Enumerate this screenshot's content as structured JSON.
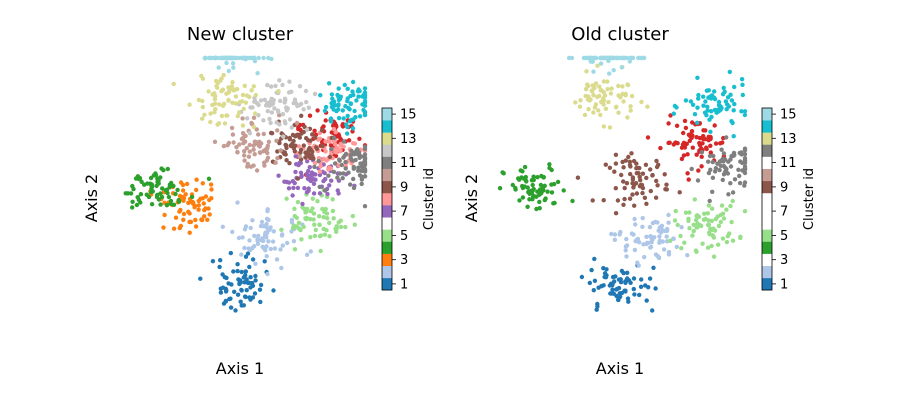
{
  "chart_data": [
    {
      "type": "scatter",
      "title": "New cluster",
      "xlabel": "Axis 1",
      "ylabel": "Axis 2",
      "colorbar": {
        "label": "Cluster id",
        "ticks": [
          1,
          3,
          5,
          7,
          9,
          11,
          13,
          15
        ],
        "range": [
          0.5,
          15.5
        ]
      },
      "cluster_centers": [
        {
          "id": 1,
          "x": 0.0,
          "y": -5.0
        },
        {
          "id": 2,
          "x": 1.3,
          "y": -2.3
        },
        {
          "id": 3,
          "x": -2.7,
          "y": -0.3
        },
        {
          "id": 4,
          "x": -4.2,
          "y": 0.6
        },
        {
          "id": 5,
          "x": 4.0,
          "y": -1.2
        },
        {
          "id": 6,
          "x": 4.5,
          "y": 3.8
        },
        {
          "id": 7,
          "x": 3.6,
          "y": 1.3
        },
        {
          "id": 8,
          "x": 4.6,
          "y": 2.8
        },
        {
          "id": 9,
          "x": 2.8,
          "y": 3.1
        },
        {
          "id": 10,
          "x": 0.6,
          "y": 3.1
        },
        {
          "id": 11,
          "x": 5.8,
          "y": 2.2
        },
        {
          "id": 12,
          "x": 2.0,
          "y": 5.6
        },
        {
          "id": 13,
          "x": -0.8,
          "y": 6.0
        },
        {
          "id": 14,
          "x": 5.5,
          "y": 5.5
        },
        {
          "id": 15,
          "x": -0.6,
          "y": 9.0
        }
      ]
    },
    {
      "type": "scatter",
      "title": "Old cluster",
      "xlabel": "Axis 1",
      "ylabel": "Axis 2",
      "colorbar": {
        "label": "Cluster id",
        "ticks": [
          1,
          3,
          5,
          7,
          9,
          11,
          13,
          15
        ],
        "range": [
          0.5,
          15.5
        ]
      },
      "cluster_centers": [
        {
          "id": 1,
          "x": 0.0,
          "y": -5.0
        },
        {
          "id": 2,
          "x": 1.3,
          "y": -2.3
        },
        {
          "id": 4,
          "x": -4.2,
          "y": 0.6
        },
        {
          "id": 5,
          "x": 4.3,
          "y": -1.5
        },
        {
          "id": 6,
          "x": 3.8,
          "y": 3.4
        },
        {
          "id": 9,
          "x": 0.9,
          "y": 1.2
        },
        {
          "id": 11,
          "x": 5.5,
          "y": 2.0
        },
        {
          "id": 13,
          "x": -0.8,
          "y": 6.0
        },
        {
          "id": 14,
          "x": 4.8,
          "y": 5.5
        },
        {
          "id": 15,
          "x": -0.6,
          "y": 9.0
        }
      ]
    }
  ],
  "palette": [
    "#1f77b4",
    "#aec7e8",
    "#ff7f0e",
    "#2ca02c",
    "#98df8a",
    "#d62728",
    "#9467bd",
    "#ff9896",
    "#8c564b",
    "#c49c94",
    "#7f7f7f",
    "#c7c7c7",
    "#dbdb8d",
    "#17becf",
    "#9edae5"
  ],
  "colorbar_swatches": [
    "#1f77b4",
    "#aec7e8",
    "#ff7f0e",
    "#2ca02c",
    "#98df8a",
    "#ffffff",
    "#9467bd",
    "#ff9896",
    "#8c564b",
    "#c49c94",
    "#7f7f7f",
    "#c7c7c7",
    "#dbdb8d",
    "#17becf",
    "#9edae5"
  ],
  "colorbar_swatches_old": [
    "#1f77b4",
    "#aec7e8",
    "#ffffff",
    "#2ca02c",
    "#98df8a",
    "#ffffff",
    "#ffffff",
    "#ffffff",
    "#8c564b",
    "#c49c94",
    "#ffffff",
    "#7f7f7f",
    "#dbdb8d",
    "#17becf",
    "#9edae5"
  ]
}
